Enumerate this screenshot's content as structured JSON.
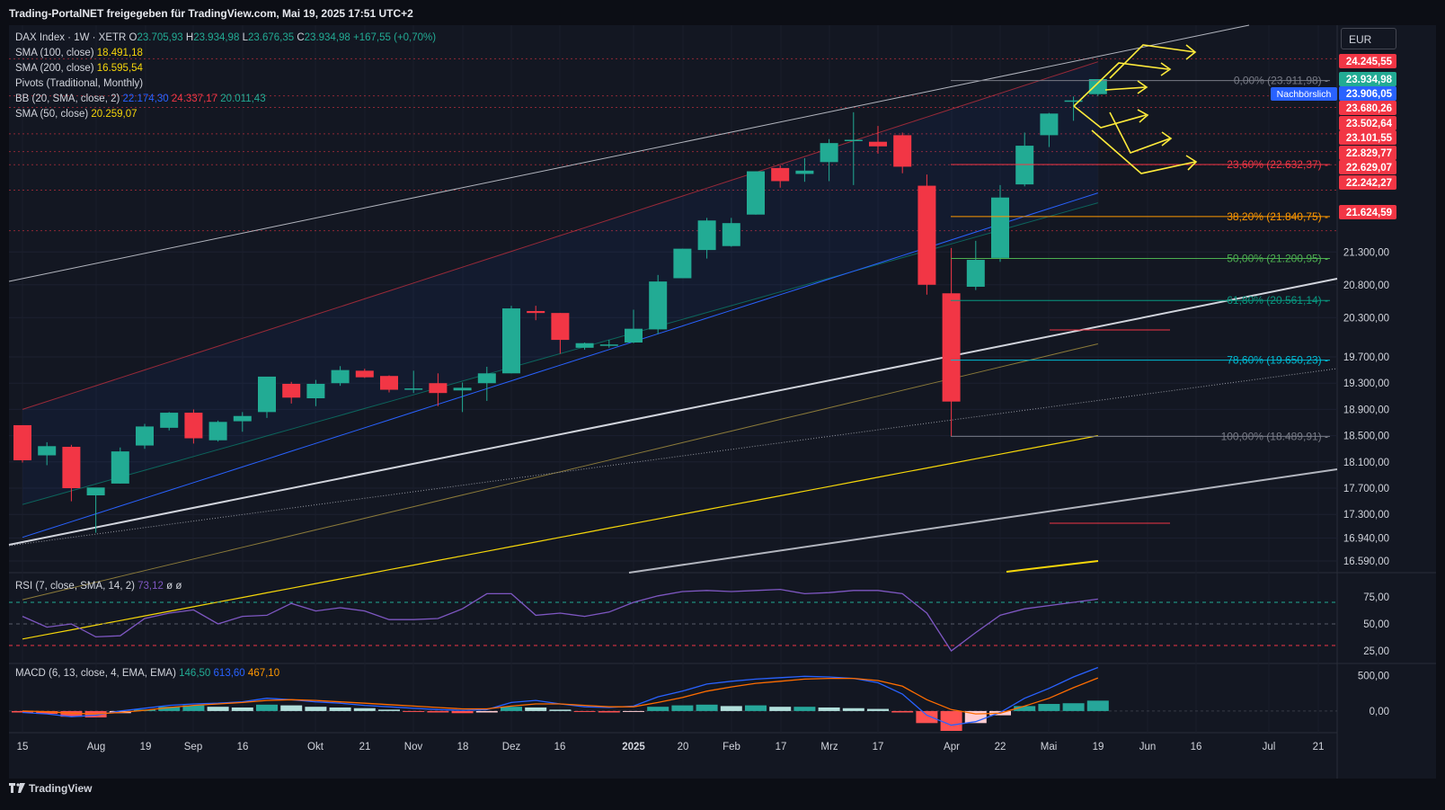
{
  "header": {
    "title": "Trading-PortalNET freigegeben für TradingView.com, Mai 19, 2025 17:51 UTC+2"
  },
  "footer": {
    "brand": "TradingView"
  },
  "currency": "EUR",
  "legend": {
    "symbol": "DAX Index · 1W · XETR",
    "open_label": "O",
    "open": "23.705,93",
    "high_label": "H",
    "high": "23.934,98",
    "low_label": "L",
    "low": "23.676,35",
    "close_label": "C",
    "close": "23.934,98",
    "change": "+167,55 (+0,70%)",
    "sma100_label": "SMA (100, close)",
    "sma100": "18.491,18",
    "sma200_label": "SMA (200, close)",
    "sma200": "16.595,54",
    "pivots_label": "Pivots (Traditional, Monthly)",
    "bb_label": "BB (20, SMA, close, 2)",
    "bb_basis": "22.174,30",
    "bb_upper": "24.337,17",
    "bb_lower": "20.011,43",
    "sma50_label": "SMA (50, close)",
    "sma50": "20.259,07"
  },
  "rsi_legend": {
    "label": "RSI (7, close, SMA, 14, 2)",
    "value": "73,12",
    "extra1": "ø",
    "extra2": "ø"
  },
  "macd_legend": {
    "label": "MACD (6, 13, close, 4, EMA, EMA)",
    "hist": "146,50",
    "macd": "613,60",
    "signal": "467,10"
  },
  "chart_data": [
    {
      "type": "candlestick",
      "title": "DAX Index · 1W · XETR",
      "x_ticks": [
        "15",
        "Aug",
        "19",
        "Sep",
        "16",
        "Okt",
        "21",
        "Nov",
        "18",
        "Dez",
        "16",
        "2025",
        "20",
        "Feb",
        "17",
        "Mrz",
        "17",
        "Apr",
        "22",
        "Mai",
        "19",
        "Jun",
        "16",
        "Jul",
        "21"
      ],
      "y_ticks": [
        "21.300,00",
        "20.800,00",
        "20.300,00",
        "19.700,00",
        "19.300,00",
        "18.900,00",
        "18.500,00",
        "18.100,00",
        "17.700,00",
        "17.300,00",
        "16.940,00",
        "16.590,00"
      ],
      "candles": [
        {
          "o": 18660,
          "h": 18660,
          "l": 18090,
          "c": 18125
        },
        {
          "o": 18200,
          "h": 18400,
          "l": 18050,
          "c": 18340
        },
        {
          "o": 18330,
          "h": 18360,
          "l": 17500,
          "c": 17700
        },
        {
          "o": 17590,
          "h": 17680,
          "l": 17020,
          "c": 17710
        },
        {
          "o": 17770,
          "h": 18320,
          "l": 17770,
          "c": 18260
        },
        {
          "o": 18350,
          "h": 18680,
          "l": 18300,
          "c": 18640
        },
        {
          "o": 18620,
          "h": 18860,
          "l": 18580,
          "c": 18850
        },
        {
          "o": 18850,
          "h": 18900,
          "l": 18380,
          "c": 18460
        },
        {
          "o": 18430,
          "h": 18730,
          "l": 18410,
          "c": 18710
        },
        {
          "o": 18720,
          "h": 18860,
          "l": 18560,
          "c": 18800
        },
        {
          "o": 18860,
          "h": 19400,
          "l": 18770,
          "c": 19400
        },
        {
          "o": 19290,
          "h": 19320,
          "l": 18990,
          "c": 19080
        },
        {
          "o": 19070,
          "h": 19350,
          "l": 18950,
          "c": 19290
        },
        {
          "o": 19300,
          "h": 19560,
          "l": 19260,
          "c": 19500
        },
        {
          "o": 19490,
          "h": 19520,
          "l": 19380,
          "c": 19390
        },
        {
          "o": 19410,
          "h": 19420,
          "l": 19160,
          "c": 19200
        },
        {
          "o": 19210,
          "h": 19490,
          "l": 19150,
          "c": 19220
        },
        {
          "o": 19300,
          "h": 19450,
          "l": 18950,
          "c": 19150
        },
        {
          "o": 19190,
          "h": 19310,
          "l": 18860,
          "c": 19230
        },
        {
          "o": 19300,
          "h": 19550,
          "l": 19030,
          "c": 19450
        },
        {
          "o": 19450,
          "h": 20480,
          "l": 19450,
          "c": 20440
        },
        {
          "o": 20400,
          "h": 20480,
          "l": 20260,
          "c": 20370
        },
        {
          "o": 20370,
          "h": 20370,
          "l": 19750,
          "c": 19960
        },
        {
          "o": 19840,
          "h": 19920,
          "l": 19810,
          "c": 19910
        },
        {
          "o": 19880,
          "h": 19960,
          "l": 19840,
          "c": 19890
        },
        {
          "o": 19920,
          "h": 20420,
          "l": 19910,
          "c": 20130
        },
        {
          "o": 20120,
          "h": 20950,
          "l": 20050,
          "c": 20850
        },
        {
          "o": 20900,
          "h": 21350,
          "l": 20900,
          "c": 21350
        },
        {
          "o": 21330,
          "h": 21820,
          "l": 21200,
          "c": 21780
        },
        {
          "o": 21390,
          "h": 21820,
          "l": 21380,
          "c": 21740
        },
        {
          "o": 21870,
          "h": 22530,
          "l": 21870,
          "c": 22530
        },
        {
          "o": 22580,
          "h": 22620,
          "l": 22280,
          "c": 22380
        },
        {
          "o": 22490,
          "h": 22730,
          "l": 22370,
          "c": 22540
        },
        {
          "o": 22670,
          "h": 23020,
          "l": 22380,
          "c": 22960
        },
        {
          "o": 23000,
          "h": 23430,
          "l": 22320,
          "c": 23010
        },
        {
          "o": 22980,
          "h": 23220,
          "l": 22800,
          "c": 22910
        },
        {
          "o": 23080,
          "h": 23120,
          "l": 22500,
          "c": 22600
        },
        {
          "o": 22310,
          "h": 22480,
          "l": 20650,
          "c": 20800
        },
        {
          "o": 20670,
          "h": 21360,
          "l": 18490,
          "c": 19020
        },
        {
          "o": 20770,
          "h": 21470,
          "l": 20720,
          "c": 21180
        },
        {
          "o": 21210,
          "h": 22320,
          "l": 21150,
          "c": 22130
        },
        {
          "o": 22330,
          "h": 23120,
          "l": 22300,
          "c": 22920
        },
        {
          "o": 23080,
          "h": 23420,
          "l": 22900,
          "c": 23410
        },
        {
          "o": 23600,
          "h": 23670,
          "l": 23300,
          "c": 23610
        },
        {
          "o": 23705.93,
          "h": 23934.98,
          "l": 23676.35,
          "c": 23934.98
        }
      ],
      "price_labels": [
        "24.245,55",
        "23.934,98",
        "23.906,05",
        "23.680,26",
        "23.502,64",
        "23.101,55",
        "22.829,77",
        "22.629,07",
        "22.242,27",
        "21.624,59"
      ],
      "price_tag": "Nachbörslich",
      "fibonacci": [
        {
          "label": "0,00% (23.911,98)",
          "value": 23911.98
        },
        {
          "label": "23,60% (22.632,37)",
          "value": 22632.37
        },
        {
          "label": "38,20% (21.840,75)",
          "value": 21840.75
        },
        {
          "label": "50,00% (21.200,95)",
          "value": 21200.95
        },
        {
          "label": "61,80% (20.561,14)",
          "value": 20561.14
        },
        {
          "label": "78,60% (19.650,23)",
          "value": 19650.23
        },
        {
          "label": "100,00% (18.489,91)",
          "value": 18489.91
        }
      ],
      "pivot_levels": [
        24245.55,
        23680.26,
        23502.64,
        23101.55,
        22829.77,
        22629.07,
        22242.27,
        21624.59
      ],
      "colors": {
        "up": "#22ab94",
        "down": "#f23645",
        "sma50": "#2962ff",
        "sma100": "#f5d60a",
        "bb": "#f23645",
        "fib0": "#787b86",
        "fib236": "#f23645",
        "fib382": "#ff9800",
        "fib50": "#4caf50",
        "fib618": "#089981",
        "fib786": "#00bcd4",
        "fib100": "#787b86",
        "pivot": "#f23645",
        "arrows": "#ffeb3b"
      }
    },
    {
      "type": "line",
      "title": "RSI (7, close, SMA, 14, 2)",
      "y_ticks": [
        "75,00",
        "50,00",
        "25,00"
      ],
      "ylim": [
        15,
        95
      ],
      "values": [
        57,
        47,
        50,
        38,
        39,
        55,
        60,
        63,
        50,
        57,
        58,
        69,
        62,
        65,
        62,
        54,
        54,
        55,
        64,
        78,
        78,
        58,
        60,
        57,
        61,
        70,
        76,
        80,
        81,
        80,
        81,
        82,
        78,
        79,
        81,
        81,
        78,
        60,
        25,
        42,
        58,
        64,
        67,
        70,
        73
      ]
    },
    {
      "type": "bar",
      "title": "MACD (6, 13, close, 4, EMA, EMA)",
      "y_ticks": [
        "500,00",
        "0,00"
      ],
      "ylim": [
        -280,
        620
      ],
      "histogram": [
        -20,
        -40,
        -80,
        -90,
        -30,
        20,
        60,
        80,
        60,
        50,
        90,
        80,
        60,
        50,
        40,
        20,
        -10,
        -20,
        -30,
        -20,
        60,
        50,
        20,
        -10,
        -20,
        -10,
        60,
        80,
        90,
        70,
        80,
        60,
        60,
        50,
        40,
        30,
        -20,
        -170,
        -280,
        -170,
        -60,
        70,
        100,
        110,
        146.5
      ],
      "macd": [
        -20,
        -40,
        -80,
        -60,
        0,
        40,
        80,
        100,
        110,
        130,
        180,
        160,
        130,
        110,
        80,
        60,
        40,
        20,
        10,
        20,
        120,
        150,
        100,
        60,
        50,
        70,
        200,
        280,
        380,
        420,
        450,
        470,
        490,
        480,
        460,
        400,
        240,
        -60,
        -200,
        -150,
        -20,
        180,
        320,
        480,
        613.6
      ],
      "signal": [
        0,
        -10,
        -30,
        -40,
        -20,
        10,
        50,
        80,
        100,
        120,
        150,
        160,
        150,
        130,
        110,
        90,
        70,
        50,
        30,
        30,
        70,
        100,
        100,
        80,
        60,
        60,
        120,
        190,
        280,
        340,
        390,
        420,
        450,
        460,
        460,
        430,
        350,
        160,
        20,
        -40,
        -30,
        70,
        180,
        330,
        467.1
      ]
    }
  ]
}
